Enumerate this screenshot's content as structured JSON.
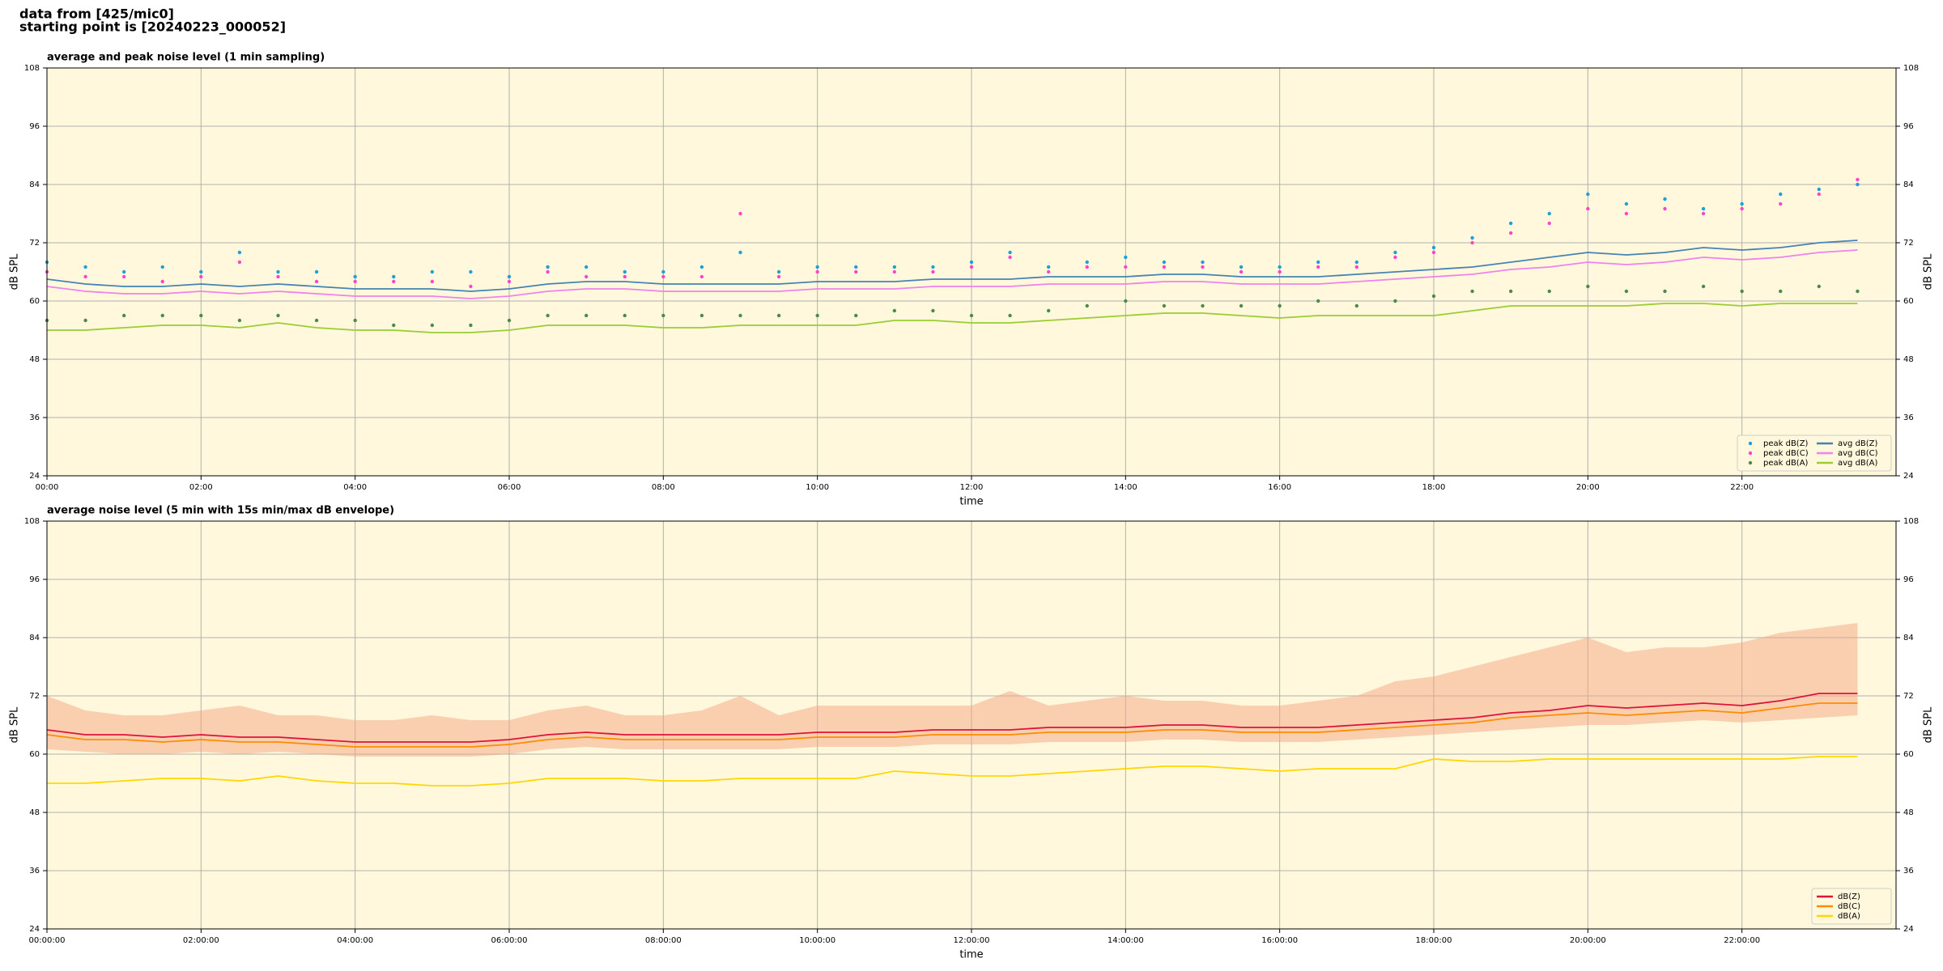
{
  "header": {
    "line1": "data from [425/mic0]",
    "line2": "starting point is [20240223_000052]"
  },
  "chart_data": [
    {
      "type": "line",
      "title": "average and peak noise level (1 min sampling)",
      "xlabel": "time",
      "ylabel": "dB SPL",
      "plot_bg": "#fff8dc",
      "grid": true,
      "legend_loc": "lower right",
      "legend_ncol": 2,
      "xlim": [
        0,
        24
      ],
      "ylim": [
        24,
        108
      ],
      "yticks": [
        24,
        36,
        48,
        60,
        72,
        84,
        96,
        108
      ],
      "xticks": [
        {
          "value": 0,
          "label": "00:00"
        },
        {
          "value": 2,
          "label": "02:00"
        },
        {
          "value": 4,
          "label": "04:00"
        },
        {
          "value": 6,
          "label": "06:00"
        },
        {
          "value": 8,
          "label": "08:00"
        },
        {
          "value": 10,
          "label": "10:00"
        },
        {
          "value": 12,
          "label": "12:00"
        },
        {
          "value": 14,
          "label": "14:00"
        },
        {
          "value": 16,
          "label": "16:00"
        },
        {
          "value": 18,
          "label": "18:00"
        },
        {
          "value": 20,
          "label": "20:00"
        },
        {
          "value": 22,
          "label": "22:00"
        }
      ],
      "x": [
        0,
        0.5,
        1,
        1.5,
        2,
        2.5,
        3,
        3.5,
        4,
        4.5,
        5,
        5.5,
        6,
        6.5,
        7,
        7.5,
        8,
        8.5,
        9,
        9.5,
        10,
        10.5,
        11,
        11.5,
        12,
        12.5,
        13,
        13.5,
        14,
        14.5,
        15,
        15.5,
        16,
        16.5,
        17,
        17.5,
        18,
        18.5,
        19,
        19.5,
        20,
        20.5,
        21,
        21.5,
        22,
        22.5,
        23,
        23.5
      ],
      "series": [
        {
          "name": "peak dB(Z)",
          "mode": "markers",
          "color": "#1f9fd8",
          "values": [
            68,
            67,
            66,
            67,
            66,
            70,
            66,
            66,
            65,
            65,
            66,
            66,
            65,
            67,
            67,
            66,
            66,
            67,
            70,
            66,
            67,
            67,
            67,
            67,
            68,
            70,
            67,
            68,
            69,
            68,
            68,
            67,
            67,
            68,
            68,
            70,
            71,
            73,
            76,
            78,
            82,
            80,
            81,
            79,
            80,
            82,
            83,
            84
          ]
        },
        {
          "name": "peak dB(C)",
          "mode": "markers",
          "color": "#ff44cc",
          "values": [
            66,
            65,
            65,
            64,
            65,
            68,
            65,
            64,
            64,
            64,
            64,
            63,
            64,
            66,
            65,
            65,
            65,
            65,
            78,
            65,
            66,
            66,
            66,
            66,
            67,
            69,
            66,
            67,
            67,
            67,
            67,
            66,
            66,
            67,
            67,
            69,
            70,
            72,
            74,
            76,
            79,
            78,
            79,
            78,
            79,
            80,
            82,
            85
          ]
        },
        {
          "name": "peak dB(A)",
          "mode": "markers",
          "color": "#4a8a4a",
          "values": [
            56,
            56,
            57,
            57,
            57,
            56,
            57,
            56,
            56,
            55,
            55,
            55,
            56,
            57,
            57,
            57,
            57,
            57,
            57,
            57,
            57,
            57,
            58,
            58,
            57,
            57,
            58,
            59,
            60,
            59,
            59,
            59,
            59,
            60,
            59,
            60,
            61,
            62,
            62,
            62,
            63,
            62,
            62,
            63,
            62,
            62,
            63,
            62
          ]
        },
        {
          "name": "avg dB(Z)",
          "mode": "lines",
          "color": "#4682b4",
          "values": [
            64.5,
            63.5,
            63,
            63,
            63.5,
            63,
            63.5,
            63,
            62.5,
            62.5,
            62.5,
            62,
            62.5,
            63.5,
            64,
            64,
            63.5,
            63.5,
            63.5,
            63.5,
            64,
            64,
            64,
            64.5,
            64.5,
            64.5,
            65,
            65,
            65,
            65.5,
            65.5,
            65,
            65,
            65,
            65.5,
            66,
            66.5,
            67,
            68,
            69,
            70,
            69.5,
            70,
            71,
            70.5,
            71,
            72,
            72.5
          ]
        },
        {
          "name": "avg dB(C)",
          "mode": "lines",
          "color": "#ee82ee",
          "values": [
            63,
            62,
            61.5,
            61.5,
            62,
            61.5,
            62,
            61.5,
            61,
            61,
            61,
            60.5,
            61,
            62,
            62.5,
            62.5,
            62,
            62,
            62,
            62,
            62.5,
            62.5,
            62.5,
            63,
            63,
            63,
            63.5,
            63.5,
            63.5,
            64,
            64,
            63.5,
            63.5,
            63.5,
            64,
            64.5,
            65,
            65.5,
            66.5,
            67,
            68,
            67.5,
            68,
            69,
            68.5,
            69,
            70,
            70.5
          ]
        },
        {
          "name": "avg dB(A)",
          "mode": "lines",
          "color": "#9acd32",
          "values": [
            54,
            54,
            54.5,
            55,
            55,
            54.5,
            55.5,
            54.5,
            54,
            54,
            53.5,
            53.5,
            54,
            55,
            55,
            55,
            54.5,
            54.5,
            55,
            55,
            55,
            55,
            56,
            56,
            55.5,
            55.5,
            56,
            56.5,
            57,
            57.5,
            57.5,
            57,
            56.5,
            57,
            57,
            57,
            57,
            58,
            59,
            59,
            59,
            59,
            59.5,
            59.5,
            59,
            59.5,
            59.5,
            59.5
          ]
        }
      ]
    },
    {
      "type": "line",
      "title": "average noise level (5 min with 15s min/max dB envelope)",
      "xlabel": "time",
      "ylabel": "dB SPL",
      "plot_bg": "#fff8dc",
      "grid": true,
      "legend_loc": "lower right",
      "legend_ncol": 1,
      "xlim": [
        0,
        24
      ],
      "ylim": [
        24,
        108
      ],
      "yticks": [
        24,
        36,
        48,
        60,
        72,
        84,
        96,
        108
      ],
      "xticks": [
        {
          "value": 0,
          "label": "00:00:00"
        },
        {
          "value": 2,
          "label": "02:00:00"
        },
        {
          "value": 4,
          "label": "04:00:00"
        },
        {
          "value": 6,
          "label": "06:00:00"
        },
        {
          "value": 8,
          "label": "08:00:00"
        },
        {
          "value": 10,
          "label": "10:00:00"
        },
        {
          "value": 12,
          "label": "12:00:00"
        },
        {
          "value": 14,
          "label": "14:00:00"
        },
        {
          "value": 16,
          "label": "16:00:00"
        },
        {
          "value": 18,
          "label": "18:00:00"
        },
        {
          "value": 20,
          "label": "20:00:00"
        },
        {
          "value": 22,
          "label": "22:00:00"
        }
      ],
      "x": [
        0,
        0.5,
        1,
        1.5,
        2,
        2.5,
        3,
        3.5,
        4,
        4.5,
        5,
        5.5,
        6,
        6.5,
        7,
        7.5,
        8,
        8.5,
        9,
        9.5,
        10,
        10.5,
        11,
        11.5,
        12,
        12.5,
        13,
        13.5,
        14,
        14.5,
        15,
        15.5,
        16,
        16.5,
        17,
        17.5,
        18,
        18.5,
        19,
        19.5,
        20,
        20.5,
        21,
        21.5,
        22,
        22.5,
        23,
        23.5
      ],
      "envelope": {
        "color": "#f4a582",
        "min": [
          61,
          60.5,
          60,
          60,
          60.5,
          60,
          60.5,
          60,
          59.5,
          59.5,
          59.5,
          59.5,
          60,
          61,
          61.5,
          61,
          61,
          61,
          61,
          61,
          61.5,
          61.5,
          61.5,
          62,
          62,
          62,
          62.5,
          62.5,
          62.5,
          63,
          63,
          62.5,
          62.5,
          62.5,
          63,
          63.5,
          64,
          64.5,
          65,
          65.5,
          66,
          66,
          66.5,
          67,
          66.5,
          67,
          67.5,
          68
        ],
        "max": [
          72,
          69,
          68,
          68,
          69,
          70,
          68,
          68,
          67,
          67,
          68,
          67,
          67,
          69,
          70,
          68,
          68,
          69,
          72,
          68,
          70,
          70,
          70,
          70,
          70,
          73,
          70,
          71,
          72,
          71,
          71,
          70,
          70,
          71,
          72,
          75,
          76,
          78,
          80,
          82,
          84,
          81,
          82,
          82,
          83,
          85,
          86,
          87
        ]
      },
      "series": [
        {
          "name": "dB(Z)",
          "mode": "lines",
          "color": "#dc143c",
          "values": [
            65,
            64,
            64,
            63.5,
            64,
            63.5,
            63.5,
            63,
            62.5,
            62.5,
            62.5,
            62.5,
            63,
            64,
            64.5,
            64,
            64,
            64,
            64,
            64,
            64.5,
            64.5,
            64.5,
            65,
            65,
            65,
            65.5,
            65.5,
            65.5,
            66,
            66,
            65.5,
            65.5,
            65.5,
            66,
            66.5,
            67,
            67.5,
            68.5,
            69,
            70,
            69.5,
            70,
            70.5,
            70,
            71,
            72.5,
            72.5
          ]
        },
        {
          "name": "dB(C)",
          "mode": "lines",
          "color": "#ff8c00",
          "values": [
            64,
            63,
            63,
            62.5,
            63,
            62.5,
            62.5,
            62,
            61.5,
            61.5,
            61.5,
            61.5,
            62,
            63,
            63.5,
            63,
            63,
            63,
            63,
            63,
            63.5,
            63.5,
            63.5,
            64,
            64,
            64,
            64.5,
            64.5,
            64.5,
            65,
            65,
            64.5,
            64.5,
            64.5,
            65,
            65.5,
            66,
            66.5,
            67.5,
            68,
            68.5,
            68,
            68.5,
            69,
            68.5,
            69.5,
            70.5,
            70.5
          ]
        },
        {
          "name": "dB(A)",
          "mode": "lines",
          "color": "#ffd700",
          "values": [
            54,
            54,
            54.5,
            55,
            55,
            54.5,
            55.5,
            54.5,
            54,
            54,
            53.5,
            53.5,
            54,
            55,
            55,
            55,
            54.5,
            54.5,
            55,
            55,
            55,
            55,
            56.5,
            56,
            55.5,
            55.5,
            56,
            56.5,
            57,
            57.5,
            57.5,
            57,
            56.5,
            57,
            57,
            57,
            59,
            58.5,
            58.5,
            59,
            59,
            59,
            59,
            59,
            59,
            59,
            59.5,
            59.5
          ]
        }
      ]
    }
  ]
}
